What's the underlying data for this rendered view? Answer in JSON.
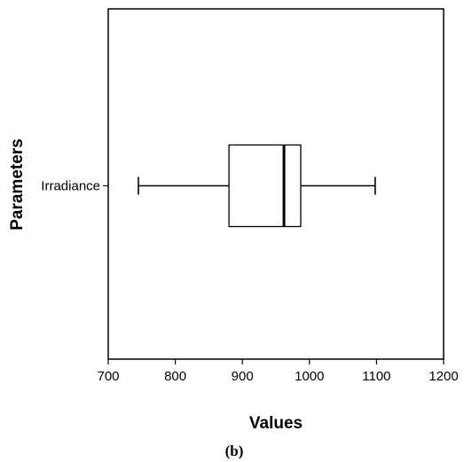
{
  "chart_data": {
    "type": "boxplot",
    "orientation": "horizontal",
    "xlabel": "Values",
    "ylabel": "Parameters",
    "xlim": [
      700,
      1200
    ],
    "xticks": [
      700,
      800,
      900,
      1000,
      1100,
      1200
    ],
    "grid": false,
    "categories": [
      "Irradiance"
    ],
    "boxes": [
      {
        "category": "Irradiance",
        "min": 745,
        "q1": 880,
        "median": 962,
        "q3": 987,
        "max": 1098
      }
    ]
  },
  "caption": "(b)"
}
